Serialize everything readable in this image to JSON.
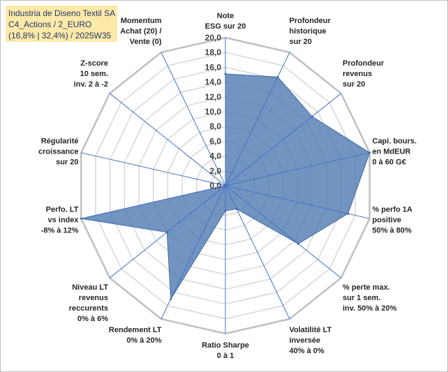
{
  "header": {
    "line1": "Industria de Diseno Textil SA",
    "line2": "C4_Actions / 2_EURO",
    "line3": "(16,8% | 32,4%) / 2025W35"
  },
  "chart_data": {
    "type": "radar",
    "rlim": [
      0,
      20
    ],
    "ticks": [
      "0,0",
      "2,0",
      "4,0",
      "6,0",
      "8,0",
      "10,0",
      "12,0",
      "14,0",
      "16,0",
      "18,0",
      "20,0"
    ],
    "grid": true,
    "fill_color": "#4a76b0",
    "axes": [
      {
        "label": [
          "Note",
          "ESG sur 20"
        ],
        "value": 15.1
      },
      {
        "label": [
          "Profondeur",
          "historique",
          "sur 20"
        ],
        "value": 16.3
      },
      {
        "label": [
          "Profondeur",
          "revenus",
          "sur 20"
        ],
        "value": 15.0
      },
      {
        "label": [
          "Capi. bours.",
          "en MdEUR",
          "0 à 60 G€"
        ],
        "value": 20.0
      },
      {
        "label": [
          "% perfo 1A",
          "positive",
          "50% à 80%"
        ],
        "value": 17.0
      },
      {
        "label": [
          "% perte max.",
          "sur 1 sem.",
          "inv. 50% à 20%"
        ],
        "value": 12.6
      },
      {
        "label": [
          "Volatilité LT",
          "inversée",
          "40% à 0%"
        ],
        "value": 3.5
      },
      {
        "label": [
          "Ratio Sharpe",
          "0 à 1"
        ],
        "value": 3.4
      },
      {
        "label": [
          "Rendement LT",
          "0% à 20%"
        ],
        "value": 17.0
      },
      {
        "label": [
          "Niveau LT",
          "revenus",
          "reccurents",
          "0% à 6%"
        ],
        "value": 10.1
      },
      {
        "label": [
          "Perfo. LT",
          "vs index",
          "-8% à 12%"
        ],
        "value": 20.0
      },
      {
        "label": [
          "Régularité",
          "croissance",
          "sur 20"
        ],
        "value": 0.0
      },
      {
        "label": [
          "Z-score",
          "10 sem.",
          "inv. 2 à -2"
        ],
        "value": 0.0
      },
      {
        "label": [
          "Momentum",
          "Achat (20) /",
          "Vente (0)"
        ],
        "value": 0.0
      }
    ]
  }
}
